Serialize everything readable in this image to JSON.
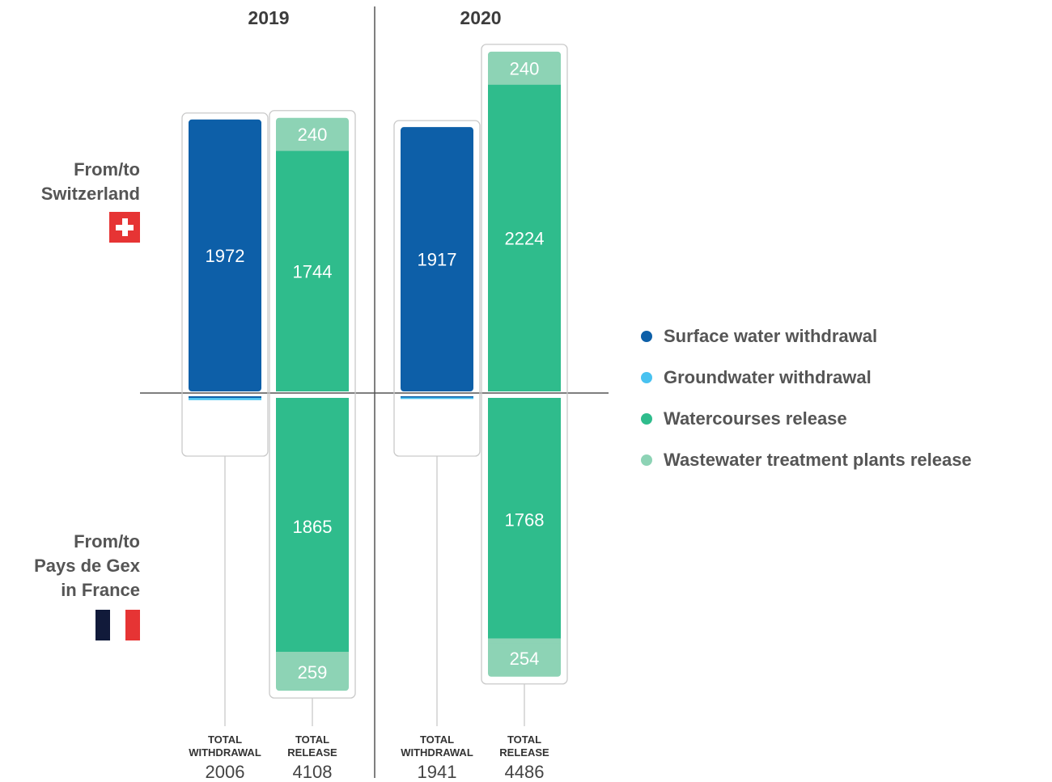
{
  "colors": {
    "surface": "#0d5fa8",
    "ground": "#48c2f0",
    "watercourse": "#2fbc8c",
    "wastewater": "#8dd3b5"
  },
  "legend": [
    {
      "key": "surface",
      "label": "Surface water withdrawal"
    },
    {
      "key": "ground",
      "label": "Groundwater withdrawal"
    },
    {
      "key": "watercourse",
      "label": "Watercourses release"
    },
    {
      "key": "wastewater",
      "label": "Wastewater treatment plants release"
    }
  ],
  "regions": {
    "top": "From/to\nSwitzerland",
    "bottom": "From/to\nPays de Gex\nin France"
  },
  "chart_data": {
    "type": "bar",
    "years": [
      {
        "label": "2019",
        "withdrawal": {
          "caption": "TOTAL\nWITHDRAWAL",
          "total": "2006",
          "switzerland_surface": 1972,
          "france_surface": 12.8,
          "france_ground": 20.9
        },
        "release": {
          "caption": "TOTAL\nRELEASE",
          "total": "4108",
          "switzerland_wastewater": 240,
          "switzerland_watercourse": 1744,
          "france_watercourse": 1865,
          "france_wastewater": 259
        }
      },
      {
        "label": "2020",
        "withdrawal": {
          "caption": "TOTAL\nWITHDRAWAL",
          "total": "1941",
          "switzerland_surface": 1917,
          "france_surface": 8.9,
          "france_ground": 14.5
        },
        "release": {
          "caption": "TOTAL\nRELEASE",
          "total": "4486",
          "switzerland_wastewater": 240,
          "switzerland_watercourse": 2224,
          "france_watercourse": 1768,
          "france_wastewater": 254
        }
      }
    ]
  }
}
